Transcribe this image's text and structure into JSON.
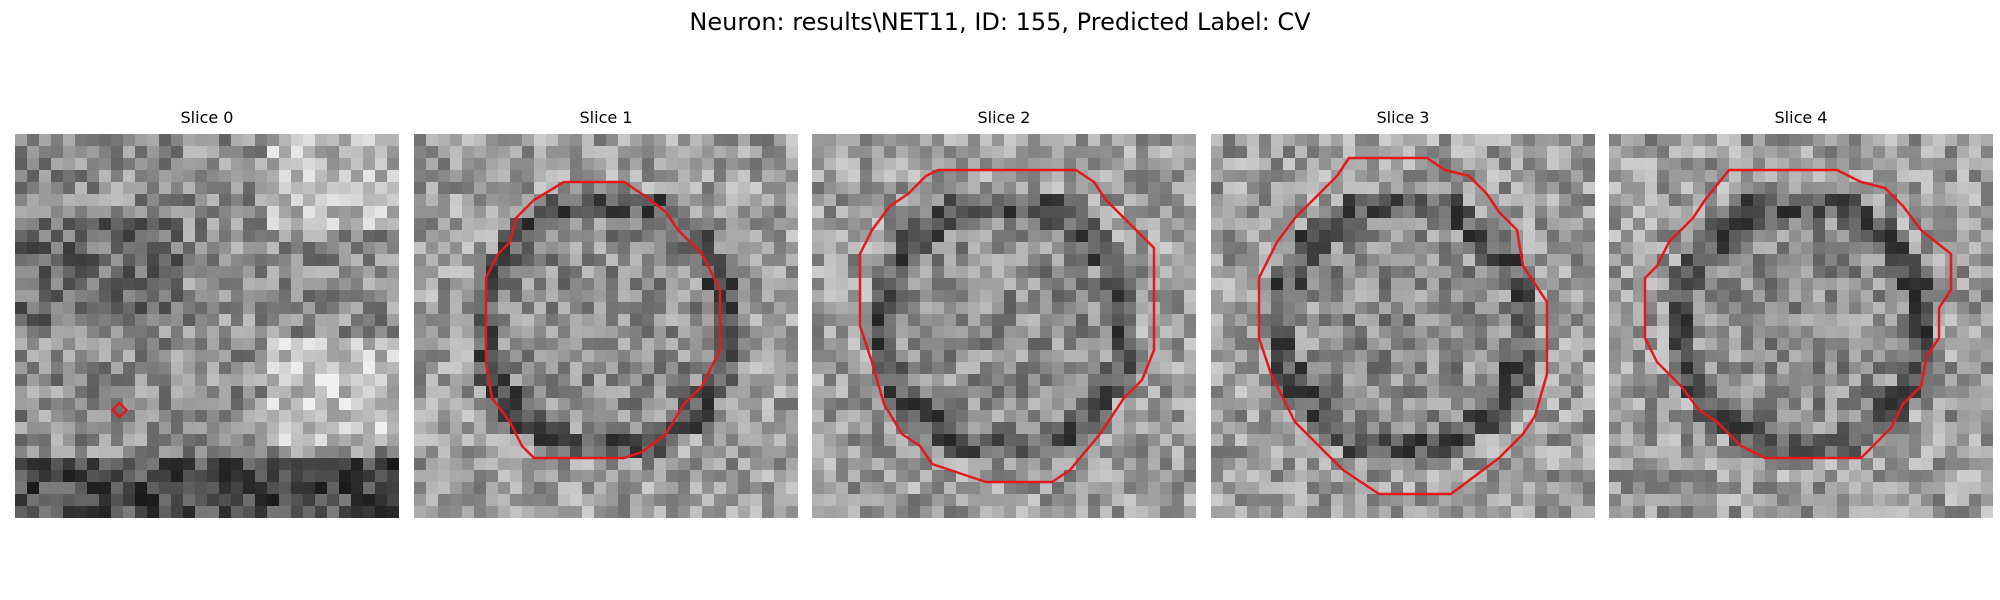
{
  "figure": {
    "title": "Neuron: results\\NET11, ID: 155, Predicted Label: CV"
  },
  "colors": {
    "contour": "#e31a1c",
    "background": "#ffffff"
  },
  "colormap": "gray",
  "panels": [
    {
      "title": "Slice 0"
    },
    {
      "title": "Slice 1"
    },
    {
      "title": "Slice 2"
    },
    {
      "title": "Slice 3"
    },
    {
      "title": "Slice 4"
    }
  ]
}
